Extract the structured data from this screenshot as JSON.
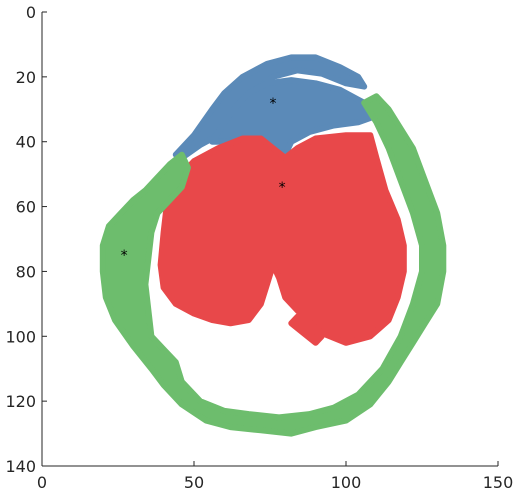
{
  "chart_data": {
    "type": "scatter",
    "title": "",
    "xlabel": "",
    "ylabel": "",
    "xlim": [
      0,
      150
    ],
    "ylim": [
      0,
      140
    ],
    "y_reversed": true,
    "grid": false,
    "x_ticks": [
      "0",
      "50",
      "100",
      "150"
    ],
    "y_ticks": [
      "0",
      "20",
      "40",
      "60",
      "80",
      "100",
      "120",
      "140"
    ],
    "x_tick_values": [
      0,
      50,
      100,
      150
    ],
    "y_tick_values": [
      0,
      20,
      40,
      60,
      80,
      100,
      120,
      140
    ],
    "series": [
      {
        "color": "#5b8ab8",
        "regions": [
          {
            "polygon": [
              [
                44,
                44
              ],
              [
                50,
                38
              ],
              [
                56,
                30
              ],
              [
                60,
                25
              ],
              [
                66,
                20
              ],
              [
                74,
                16
              ],
              [
                82,
                14
              ],
              [
                90,
                14
              ],
              [
                98,
                17
              ],
              [
                104,
                20
              ],
              [
                106,
                23
              ],
              [
                100,
                22
              ],
              [
                92,
                19
              ],
              [
                84,
                18
              ],
              [
                76,
                20
              ],
              [
                70,
                24
              ],
              [
                66,
                28
              ],
              [
                62,
                33
              ],
              [
                58,
                38
              ],
              [
                52,
                41
              ],
              [
                46,
                45
              ]
            ]
          },
          {
            "polygon": [
              [
                56,
                40
              ],
              [
                60,
                34
              ],
              [
                64,
                29
              ],
              [
                68,
                25
              ],
              [
                74,
                22
              ],
              [
                82,
                21
              ],
              [
                90,
                22
              ],
              [
                98,
                24
              ],
              [
                104,
                27
              ],
              [
                108,
                29
              ],
              [
                110,
                32
              ],
              [
                104,
                34
              ],
              [
                96,
                35
              ],
              [
                88,
                37
              ],
              [
                82,
                40
              ],
              [
                80,
                44
              ],
              [
                76,
                42
              ],
              [
                72,
                39
              ],
              [
                66,
                39
              ],
              [
                60,
                40
              ]
            ]
          }
        ]
      },
      {
        "color": "#e8484a",
        "regions": [
          {
            "polygon": [
              [
                50,
                46
              ],
              [
                58,
                42
              ],
              [
                66,
                39
              ],
              [
                72,
                39
              ],
              [
                76,
                42
              ],
              [
                80,
                45
              ],
              [
                84,
                42
              ],
              [
                90,
                39
              ],
              [
                100,
                38
              ],
              [
                108,
                38
              ],
              [
                110,
                45
              ],
              [
                113,
                55
              ],
              [
                117,
                64
              ],
              [
                119,
                72
              ],
              [
                119,
                80
              ],
              [
                117,
                88
              ],
              [
                114,
                95
              ],
              [
                108,
                100
              ],
              [
                100,
                102
              ],
              [
                92,
                99
              ],
              [
                86,
                94
              ],
              [
                80,
                88
              ],
              [
                78,
                82
              ],
              [
                76,
                78
              ],
              [
                74,
                84
              ],
              [
                72,
                90
              ],
              [
                68,
                95
              ],
              [
                62,
                96
              ],
              [
                56,
                95
              ],
              [
                50,
                93
              ],
              [
                44,
                90
              ],
              [
                40,
                85
              ],
              [
                39,
                78
              ],
              [
                40,
                68
              ],
              [
                41,
                60
              ],
              [
                44,
                52
              ]
            ]
          },
          {
            "polygon": [
              [
                84,
                94
              ],
              [
                88,
                97
              ],
              [
                92,
                100
              ],
              [
                90,
                102
              ],
              [
                86,
                99
              ],
              [
                82,
                96
              ]
            ]
          }
        ]
      },
      {
        "color": "#6dbd6d",
        "regions": [
          {
            "polygon": [
              [
                46,
                44
              ],
              [
                42,
                47
              ],
              [
                38,
                51
              ],
              [
                34,
                55
              ],
              [
                30,
                58
              ],
              [
                26,
                62
              ],
              [
                22,
                66
              ],
              [
                20,
                72
              ],
              [
                20,
                80
              ],
              [
                21,
                88
              ],
              [
                24,
                95
              ],
              [
                30,
                103
              ],
              [
                36,
                110
              ],
              [
                40,
                115
              ],
              [
                46,
                121
              ],
              [
                54,
                126
              ],
              [
                62,
                128
              ],
              [
                72,
                129
              ],
              [
                82,
                130
              ],
              [
                90,
                128
              ],
              [
                100,
                126
              ],
              [
                108,
                121
              ],
              [
                114,
                114
              ],
              [
                118,
                108
              ],
              [
                122,
                102
              ],
              [
                126,
                96
              ],
              [
                130,
                90
              ],
              [
                132,
                80
              ],
              [
                132,
                72
              ],
              [
                130,
                62
              ],
              [
                126,
                52
              ],
              [
                122,
                42
              ],
              [
                118,
                36
              ],
              [
                114,
                30
              ],
              [
                110,
                26
              ],
              [
                106,
                28
              ],
              [
                110,
                34
              ],
              [
                114,
                42
              ],
              [
                118,
                52
              ],
              [
                122,
                62
              ],
              [
                125,
                72
              ],
              [
                125,
                80
              ],
              [
                122,
                90
              ],
              [
                118,
                100
              ],
              [
                112,
                110
              ],
              [
                104,
                118
              ],
              [
                96,
                122
              ],
              [
                88,
                124
              ],
              [
                78,
                125
              ],
              [
                68,
                124
              ],
              [
                60,
                123
              ],
              [
                52,
                120
              ],
              [
                46,
                114
              ],
              [
                44,
                108
              ],
              [
                40,
                104
              ],
              [
                36,
                100
              ],
              [
                35,
                92
              ],
              [
                34,
                84
              ],
              [
                35,
                76
              ],
              [
                36,
                68
              ],
              [
                38,
                62
              ],
              [
                42,
                58
              ],
              [
                46,
                54
              ],
              [
                48,
                48
              ]
            ]
          }
        ]
      }
    ],
    "markers": [
      {
        "x": 76,
        "y": 28,
        "symbol": "*"
      },
      {
        "x": 79,
        "y": 54,
        "symbol": "*"
      },
      {
        "x": 27,
        "y": 75,
        "symbol": "*"
      }
    ]
  }
}
